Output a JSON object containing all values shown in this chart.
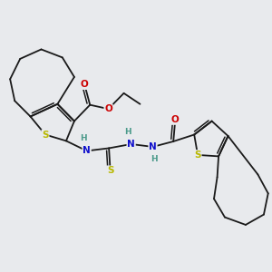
{
  "background_color": "#e8eaed",
  "figsize": [
    3.0,
    3.0
  ],
  "dpi": 100,
  "atom_colors": {
    "C": "#1a1a1a",
    "H": "#4a9a8a",
    "N": "#1010cc",
    "O": "#cc0000",
    "S": "#b8b800"
  },
  "bond_color": "#1a1a1a",
  "bond_width": 1.3,
  "xlim": [
    0,
    10
  ],
  "ylim": [
    0,
    10
  ]
}
